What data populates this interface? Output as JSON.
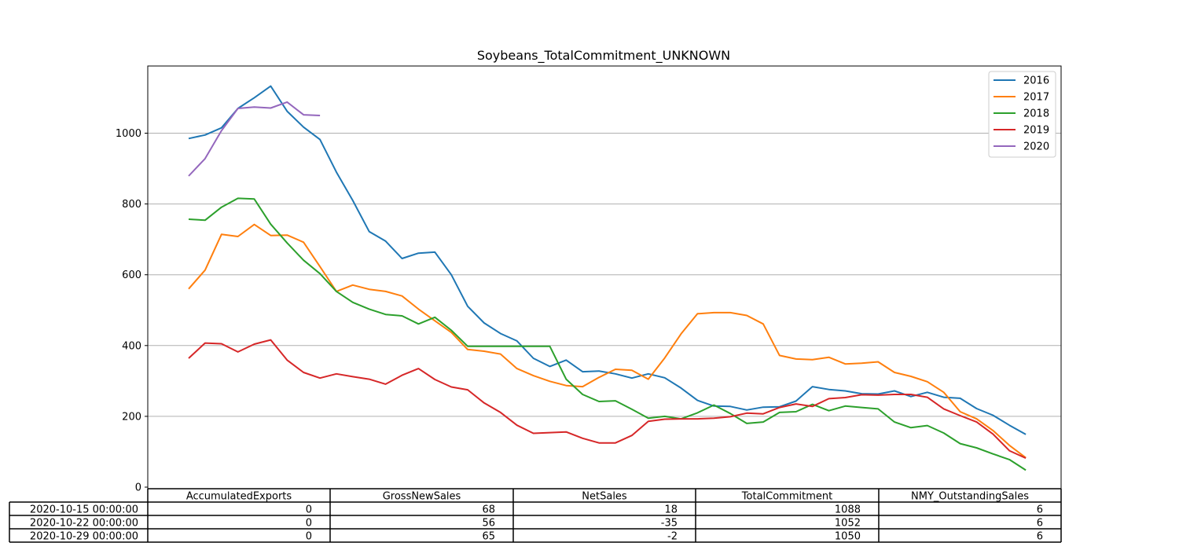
{
  "chart_data": {
    "type": "line",
    "title": "Soybeans_TotalCommitment_UNKNOWN",
    "xlabel": "",
    "ylabel": "",
    "ylim": [
      -5,
      1185
    ],
    "yticks": [
      0,
      200,
      400,
      600,
      800,
      1000
    ],
    "grid": "horizontal",
    "legend_position": "top-right",
    "x_count": 53,
    "series": [
      {
        "name": "2016",
        "color": "#1f77b4",
        "values": [
          985,
          995,
          1015,
          1070,
          1100,
          1133,
          1062,
          1017,
          982,
          890,
          810,
          722,
          695,
          646,
          661,
          664,
          600,
          511,
          464,
          434,
          413,
          364,
          341,
          359,
          326,
          328,
          320,
          308,
          320,
          309,
          280,
          245,
          229,
          228,
          218,
          226,
          227,
          243,
          284,
          276,
          272,
          264,
          263,
          272,
          256,
          268,
          254,
          251,
          222,
          203,
          175,
          149
        ]
      },
      {
        "name": "2017",
        "color": "#ff7f0e",
        "values": [
          560,
          613,
          714,
          708,
          742,
          711,
          712,
          692,
          623,
          553,
          571,
          559,
          553,
          540,
          503,
          470,
          437,
          389,
          384,
          376,
          335,
          315,
          299,
          287,
          284,
          310,
          333,
          330,
          305,
          365,
          433,
          490,
          493,
          493,
          485,
          461,
          372,
          362,
          360,
          367,
          348,
          350,
          354,
          324,
          313,
          298,
          268,
          213,
          193,
          160,
          118,
          83
        ]
      },
      {
        "name": "2018",
        "color": "#2ca02c",
        "values": [
          757,
          754,
          791,
          816,
          814,
          743,
          690,
          641,
          603,
          553,
          522,
          503,
          488,
          484,
          461,
          480,
          443,
          398,
          398,
          398,
          398,
          398,
          398,
          305,
          262,
          242,
          244,
          220,
          195,
          200,
          193,
          210,
          232,
          208,
          180,
          184,
          211,
          213,
          234,
          216,
          229,
          225,
          221,
          184,
          168,
          174,
          153,
          123,
          111,
          94,
          78,
          48
        ]
      },
      {
        "name": "2019",
        "color": "#d62728",
        "values": [
          364,
          407,
          405,
          382,
          404,
          416,
          359,
          324,
          308,
          320,
          312,
          305,
          291,
          316,
          335,
          304,
          283,
          275,
          238,
          211,
          175,
          152,
          154,
          156,
          138,
          125,
          125,
          146,
          186,
          192,
          193,
          193,
          195,
          199,
          209,
          207,
          225,
          235,
          228,
          250,
          253,
          261,
          260,
          262,
          262,
          254,
          221,
          202,
          184,
          150,
          103,
          82
        ]
      },
      {
        "name": "2020",
        "color": "#9467bd",
        "values": [
          879,
          928,
          1007,
          1070,
          1074,
          1071,
          1088,
          1052,
          1050
        ]
      }
    ],
    "table": {
      "columns": [
        "AccumulatedExports",
        "GrossNewSales",
        "NetSales",
        "TotalCommitment",
        "NMY_OutstandingSales"
      ],
      "rows": [
        {
          "label": "2020-10-15 00:00:00",
          "values": [
            "0",
            "68",
            "18",
            "1088",
            "6"
          ]
        },
        {
          "label": "2020-10-22 00:00:00",
          "values": [
            "0",
            "56",
            "-35",
            "1052",
            "6"
          ]
        },
        {
          "label": "2020-10-29 00:00:00",
          "values": [
            "0",
            "65",
            "-2",
            "1050",
            "6"
          ]
        }
      ]
    }
  }
}
